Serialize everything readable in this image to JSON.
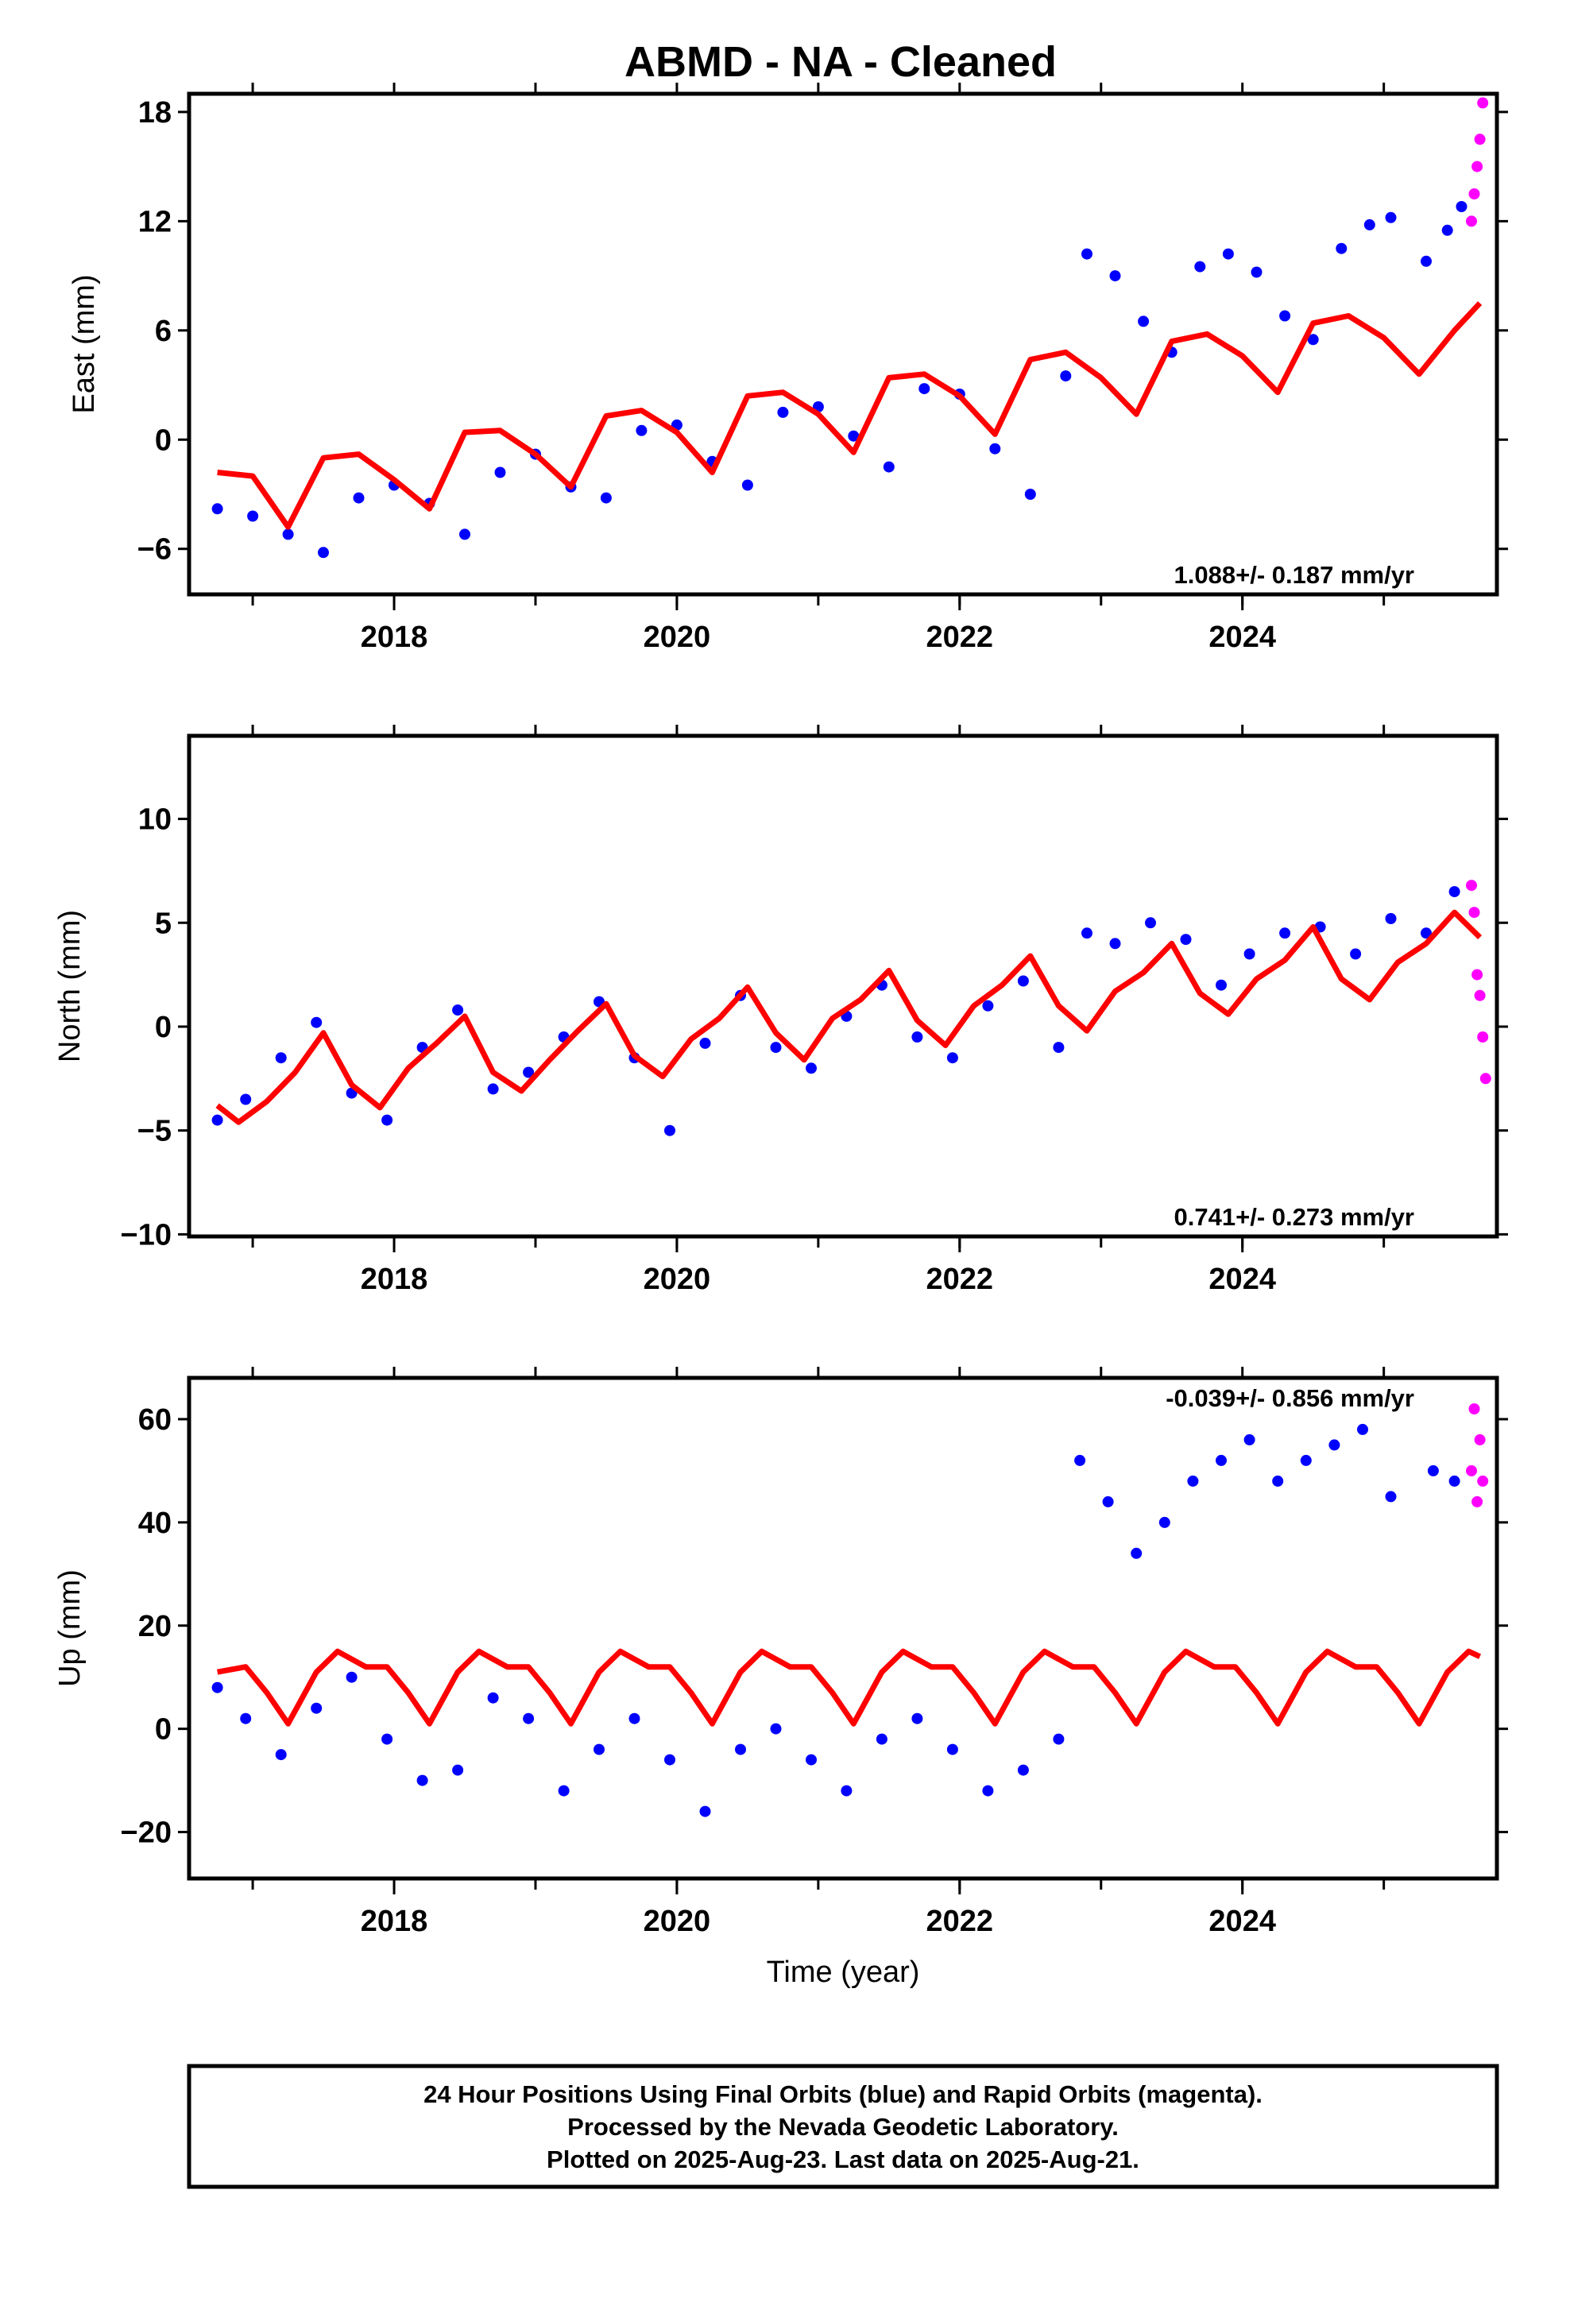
{
  "chart_data": [
    {
      "type": "scatter",
      "title": "ABMD  - NA - Cleaned",
      "ylabel": "East (mm)",
      "xlabel": "",
      "xlim": [
        2016.55,
        2025.8
      ],
      "ylim": [
        -8.5,
        19
      ],
      "yticks": [
        -6,
        0,
        6,
        12,
        18
      ],
      "xticks": [
        2018,
        2020,
        2022,
        2024
      ],
      "rate_text": "1.088+/- 0.187 mm/yr",
      "series": [
        {
          "color": "#0000ff",
          "x": [
            2016.75,
            2017.0,
            2017.25,
            2017.5,
            2017.75,
            2018.0,
            2018.25,
            2018.5,
            2018.75,
            2019.0,
            2019.25,
            2019.5,
            2019.75,
            2020.0,
            2020.25,
            2020.5,
            2020.75,
            2021.0,
            2021.25,
            2021.5,
            2021.75,
            2022.0,
            2022.25,
            2022.5,
            2022.75,
            2022.9,
            2023.1,
            2023.3,
            2023.5,
            2023.7,
            2023.9,
            2024.1,
            2024.3,
            2024.5,
            2024.7,
            2024.9,
            2025.05,
            2025.3,
            2025.45,
            2025.55
          ],
          "y": [
            -3.8,
            -4.2,
            -5.2,
            -6.2,
            -3.2,
            -2.5,
            -3.5,
            -5.2,
            -1.8,
            -0.8,
            -2.6,
            -3.2,
            0.5,
            0.8,
            -1.2,
            -2.5,
            1.5,
            1.8,
            0.2,
            -1.5,
            2.8,
            2.5,
            -0.5,
            -3.0,
            3.5,
            10.2,
            9.0,
            6.5,
            4.8,
            9.5,
            10.2,
            9.2,
            6.8,
            5.5,
            10.5,
            11.8,
            12.2,
            9.8,
            11.5,
            12.8
          ]
        },
        {
          "color": "#ff00ff",
          "x": [
            2025.62,
            2025.64,
            2025.66,
            2025.68,
            2025.7
          ],
          "y": [
            12.0,
            13.5,
            15.0,
            16.5,
            18.5
          ]
        }
      ],
      "model": {
        "color": "#ff0000",
        "x": [
          2016.75,
          2017.0,
          2017.25,
          2017.5,
          2017.75,
          2018.0,
          2018.25,
          2018.5,
          2018.75,
          2019.0,
          2019.25,
          2019.5,
          2019.75,
          2020.0,
          2020.25,
          2020.5,
          2020.75,
          2021.0,
          2021.25,
          2021.5,
          2021.75,
          2022.0,
          2022.25,
          2022.5,
          2022.75,
          2023.0,
          2023.25,
          2023.5,
          2023.75,
          2024.0,
          2024.25,
          2024.5,
          2024.75,
          2025.0,
          2025.25,
          2025.5,
          2025.68
        ],
        "y": [
          -1.8,
          -2.0,
          -4.8,
          -1.0,
          -0.8,
          -2.2,
          -3.8,
          0.4,
          0.5,
          -0.8,
          -2.6,
          1.3,
          1.6,
          0.4,
          -1.8,
          2.4,
          2.6,
          1.4,
          -0.7,
          3.4,
          3.6,
          2.4,
          0.3,
          4.4,
          4.8,
          3.4,
          1.4,
          5.4,
          5.8,
          4.6,
          2.6,
          6.4,
          6.8,
          5.6,
          3.6,
          6.0,
          7.5
        ]
      }
    },
    {
      "type": "scatter",
      "title": "",
      "ylabel": "North (mm)",
      "xlabel": "",
      "xlim": [
        2016.55,
        2025.8
      ],
      "ylim": [
        -10.1,
        14
      ],
      "yticks": [
        -10,
        -5,
        0,
        5,
        10
      ],
      "xticks": [
        2018,
        2020,
        2022,
        2024
      ],
      "rate_text": "0.741+/- 0.273 mm/yr",
      "series": [
        {
          "color": "#0000ff",
          "x": [
            2016.75,
            2016.95,
            2017.2,
            2017.45,
            2017.7,
            2017.95,
            2018.2,
            2018.45,
            2018.7,
            2018.95,
            2019.2,
            2019.45,
            2019.7,
            2019.95,
            2020.2,
            2020.45,
            2020.7,
            2020.95,
            2021.2,
            2021.45,
            2021.7,
            2021.95,
            2022.2,
            2022.45,
            2022.7,
            2022.9,
            2023.1,
            2023.35,
            2023.6,
            2023.85,
            2024.05,
            2024.3,
            2024.55,
            2024.8,
            2025.05,
            2025.3,
            2025.5
          ],
          "y": [
            -4.5,
            -3.5,
            -1.5,
            0.2,
            -3.2,
            -4.5,
            -1.0,
            0.8,
            -3.0,
            -2.2,
            -0.5,
            1.2,
            -1.5,
            -5.0,
            -0.8,
            1.5,
            -1.0,
            -2.0,
            0.5,
            2.0,
            -0.5,
            -1.5,
            1.0,
            2.2,
            -1.0,
            4.5,
            4.0,
            5.0,
            4.2,
            2.0,
            3.5,
            4.5,
            4.8,
            3.5,
            5.2,
            4.5,
            6.5
          ]
        },
        {
          "color": "#ff00ff",
          "x": [
            2025.62,
            2025.64,
            2025.66,
            2025.68,
            2025.7,
            2025.72
          ],
          "y": [
            6.8,
            5.5,
            2.5,
            1.5,
            -0.5,
            -2.5
          ]
        }
      ],
      "model": {
        "color": "#ff0000",
        "x": [
          2016.75,
          2016.9,
          2017.1,
          2017.3,
          2017.5,
          2017.7,
          2017.9,
          2018.1,
          2018.3,
          2018.5,
          2018.7,
          2018.9,
          2019.1,
          2019.3,
          2019.5,
          2019.7,
          2019.9,
          2020.1,
          2020.3,
          2020.5,
          2020.7,
          2020.9,
          2021.1,
          2021.3,
          2021.5,
          2021.7,
          2021.9,
          2022.1,
          2022.3,
          2022.5,
          2022.7,
          2022.9,
          2023.1,
          2023.3,
          2023.5,
          2023.7,
          2023.9,
          2024.1,
          2024.3,
          2024.5,
          2024.7,
          2024.9,
          2025.1,
          2025.3,
          2025.5,
          2025.68
        ],
        "y": [
          -3.8,
          -4.6,
          -3.6,
          -2.2,
          -0.3,
          -2.8,
          -3.9,
          -2.0,
          -0.8,
          0.5,
          -2.2,
          -3.1,
          -1.6,
          -0.2,
          1.1,
          -1.4,
          -2.4,
          -0.6,
          0.4,
          1.9,
          -0.3,
          -1.6,
          0.4,
          1.3,
          2.7,
          0.3,
          -0.9,
          1.0,
          2.0,
          3.4,
          1.0,
          -0.2,
          1.7,
          2.6,
          4.0,
          1.6,
          0.6,
          2.3,
          3.2,
          4.8,
          2.3,
          1.3,
          3.1,
          4.0,
          5.5,
          4.3
        ]
      }
    },
    {
      "type": "scatter",
      "title": "",
      "ylabel": "Up (mm)",
      "xlabel": "Time (year)",
      "xlim": [
        2016.55,
        2025.8
      ],
      "ylim": [
        -29,
        68
      ],
      "yticks": [
        -20,
        0,
        20,
        40,
        60
      ],
      "xticks": [
        2018,
        2020,
        2022,
        2024
      ],
      "rate_text": "-0.039+/- 0.856 mm/yr",
      "series": [
        {
          "color": "#0000ff",
          "x": [
            2016.75,
            2016.95,
            2017.2,
            2017.45,
            2017.7,
            2017.95,
            2018.2,
            2018.45,
            2018.7,
            2018.95,
            2019.2,
            2019.45,
            2019.7,
            2019.95,
            2020.2,
            2020.45,
            2020.7,
            2020.95,
            2021.2,
            2021.45,
            2021.7,
            2021.95,
            2022.2,
            2022.45,
            2022.7,
            2022.85,
            2023.05,
            2023.25,
            2023.45,
            2023.65,
            2023.85,
            2024.05,
            2024.25,
            2024.45,
            2024.65,
            2024.85,
            2025.05,
            2025.35,
            2025.5
          ],
          "y": [
            8,
            2,
            -5,
            4,
            10,
            -2,
            -10,
            -8,
            6,
            2,
            -12,
            -4,
            2,
            -6,
            -16,
            -4,
            0,
            -6,
            -12,
            -2,
            2,
            -4,
            -12,
            -8,
            -2,
            52,
            44,
            34,
            40,
            48,
            52,
            56,
            48,
            52,
            55,
            58,
            45,
            50,
            48
          ]
        },
        {
          "color": "#ff00ff",
          "x": [
            2025.62,
            2025.64,
            2025.66,
            2025.68,
            2025.7
          ],
          "y": [
            50,
            62,
            44,
            56,
            48
          ]
        }
      ],
      "model": {
        "color": "#ff0000",
        "x": [
          2016.75,
          2016.95,
          2017.1,
          2017.25,
          2017.45,
          2017.6,
          2017.8,
          2017.95,
          2018.1,
          2018.25,
          2018.45,
          2018.6,
          2018.8,
          2018.95,
          2019.1,
          2019.25,
          2019.45,
          2019.6,
          2019.8,
          2019.95,
          2020.1,
          2020.25,
          2020.45,
          2020.6,
          2020.8,
          2020.95,
          2021.1,
          2021.25,
          2021.45,
          2021.6,
          2021.8,
          2021.95,
          2022.1,
          2022.25,
          2022.45,
          2022.6,
          2022.8,
          2022.95,
          2023.1,
          2023.25,
          2023.45,
          2023.6,
          2023.8,
          2023.95,
          2024.1,
          2024.25,
          2024.45,
          2024.6,
          2024.8,
          2024.95,
          2025.1,
          2025.25,
          2025.45,
          2025.6,
          2025.68
        ],
        "y": [
          11,
          12,
          7,
          1,
          11,
          15,
          12,
          12,
          7,
          1,
          11,
          15,
          12,
          12,
          7,
          1,
          11,
          15,
          12,
          12,
          7,
          1,
          11,
          15,
          12,
          12,
          7,
          1,
          11,
          15,
          12,
          12,
          7,
          1,
          11,
          15,
          12,
          12,
          7,
          1,
          11,
          15,
          12,
          12,
          7,
          1,
          11,
          15,
          12,
          12,
          7,
          1,
          11,
          15,
          14
        ]
      }
    }
  ],
  "footer": {
    "line1": "24 Hour Positions Using Final Orbits (blue) and Rapid Orbits (magenta).",
    "line2": "Processed by the Nevada Geodetic Laboratory.",
    "line3": "Plotted on 2025-Aug-23. Last data on 2025-Aug-21."
  }
}
